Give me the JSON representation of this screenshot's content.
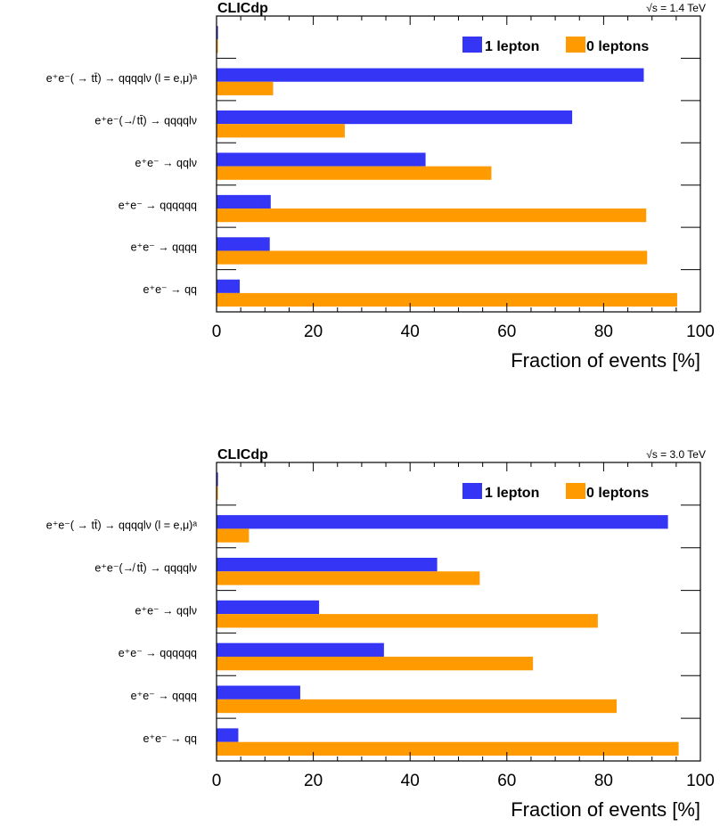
{
  "colors": {
    "one_lepton": "#3535f5",
    "zero_leptons": "#ff9a00"
  },
  "chart_data": [
    {
      "type": "bar",
      "orientation": "horizontal",
      "corner_label": "CLICdp",
      "energy_label": "√s = 1.4 TeV",
      "xlabel": "Fraction of events [%]",
      "xlim": [
        0,
        100
      ],
      "xticks": [
        "0",
        "20",
        "40",
        "60",
        "80",
        "100"
      ],
      "legend_position": "top-right",
      "categories": [
        "e⁺e⁻ → qq",
        "e⁺e⁻ → qqqq",
        "e⁺e⁻ → qqqqqq",
        "e⁺e⁻ → qqlν",
        "e⁺e⁻(↛ tt̄) → qqqqlν",
        "e⁺e⁻( → tt̄) → qqqqlν (l = e,μ)ᵃ",
        ""
      ],
      "series": [
        {
          "name": "1 lepton",
          "values": [
            4.8,
            11.0,
            11.2,
            43.2,
            73.5,
            88.3,
            0.3
          ]
        },
        {
          "name": "0 leptons",
          "values": [
            95.2,
            89.0,
            88.8,
            56.8,
            26.5,
            11.7,
            0.3
          ]
        }
      ]
    },
    {
      "type": "bar",
      "orientation": "horizontal",
      "corner_label": "CLICdp",
      "energy_label": "√s = 3.0 TeV",
      "xlabel": "Fraction of events [%]",
      "xlim": [
        0,
        100
      ],
      "xticks": [
        "0",
        "20",
        "40",
        "60",
        "80",
        "100"
      ],
      "legend_position": "top-right",
      "categories": [
        "e⁺e⁻ → qq",
        "e⁺e⁻ → qqqq",
        "e⁺e⁻ → qqqqqq",
        "e⁺e⁻ → qqlν",
        "e⁺e⁻(↛ tt̄) → qqqqlν",
        "e⁺e⁻( → tt̄) → qqqqlν (l = e,μ)ᵃ",
        ""
      ],
      "series": [
        {
          "name": "1 lepton",
          "values": [
            4.5,
            17.3,
            34.6,
            21.2,
            45.6,
            93.3,
            0.3
          ]
        },
        {
          "name": "0 leptons",
          "values": [
            95.5,
            82.7,
            65.4,
            78.8,
            54.4,
            6.7,
            0.3
          ]
        }
      ]
    }
  ]
}
